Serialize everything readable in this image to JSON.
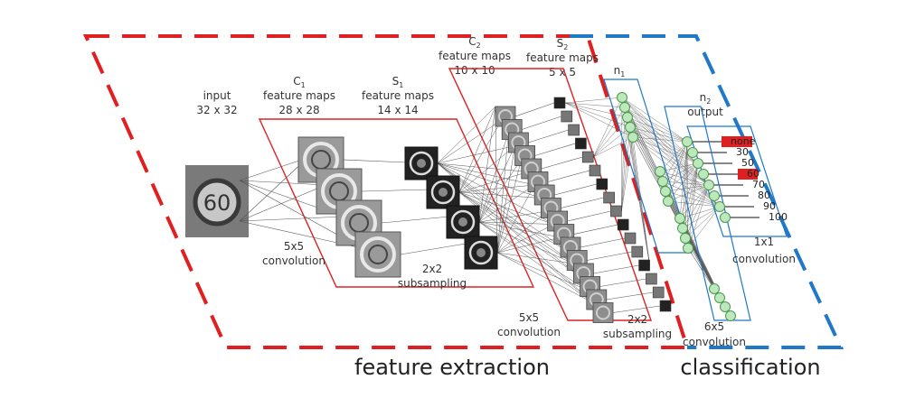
{
  "labels": {
    "input_title": "input",
    "input_size": "32 x 32",
    "c1_title": "C",
    "c1_sub": "1",
    "c1_name": "feature maps",
    "c1_size": "28 x 28",
    "s1_title": "S",
    "s1_sub": "1",
    "s1_name": "feature maps",
    "s1_size": "14 x 14",
    "c2_title": "C",
    "c2_sub": "2",
    "c2_name": "feature maps",
    "c2_size": "10 x 10",
    "s2_title": "S",
    "s2_sub": "2",
    "s2_name": "feature maps",
    "s2_size": "5 x 5",
    "n1_title": "n",
    "n1_sub": "1",
    "n2_title": "n",
    "n2_sub": "2",
    "n2_name": "output",
    "conv1_a": "5x5",
    "conv1_b": "convolution",
    "sub1_a": "2x2",
    "sub1_b": "subsampling",
    "conv2_a": "5x5",
    "conv2_b": "convolution",
    "sub2_a": "2x2",
    "sub2_b": "subsampling",
    "conv3_a": "6x5",
    "conv3_b": "convolution",
    "conv4_a": "1x1",
    "conv4_b": "convolution",
    "feature_extraction": "feature extraction",
    "classification": "classification"
  },
  "sign": {
    "text": "60"
  },
  "outputs": [
    "none",
    "30",
    "50",
    "60",
    "70",
    "80",
    "90",
    "100"
  ],
  "colors": {
    "feature_extraction": "#e02020",
    "classification": "#1f78c8",
    "neuron_fill": "#bde8bd",
    "neuron_stroke": "#4a9a4a",
    "highlight": "#e02020"
  }
}
